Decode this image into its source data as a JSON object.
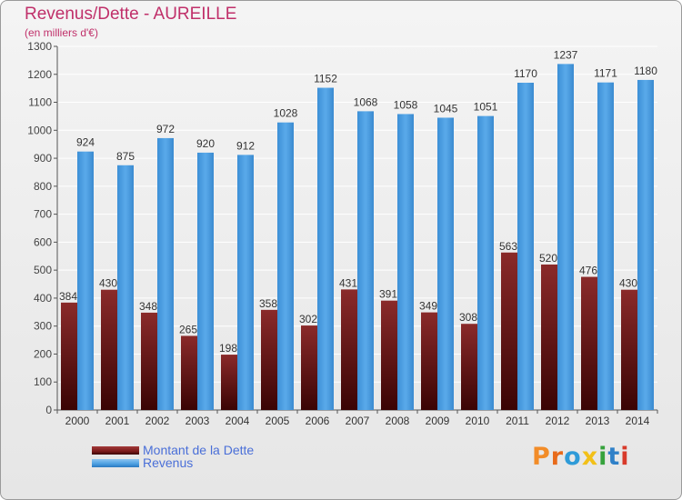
{
  "title": "Revenus/Dette - AUREILLE",
  "subtitle": "(en milliers d'€)",
  "brand": {
    "text": "Proxiti",
    "letters": [
      {
        "ch": "P",
        "color": "#f28c28"
      },
      {
        "ch": "r",
        "color": "#e86a1a"
      },
      {
        "ch": "o",
        "color": "#2f9bd8"
      },
      {
        "ch": "x",
        "color": "#f2c018"
      },
      {
        "ch": "i",
        "color": "#36a23c"
      },
      {
        "ch": "t",
        "color": "#2f80c8"
      },
      {
        "ch": "i",
        "color": "#d83a2a"
      }
    ]
  },
  "colors": {
    "title": "#c0306a",
    "dette": "#7a1a1a",
    "revenus": "#4a9ee0",
    "axis": "#333333",
    "grid": "#ffffff"
  },
  "chart_data": {
    "type": "bar",
    "title": "Revenus/Dette - AUREILLE",
    "subtitle": "(en milliers d'€)",
    "xlabel": "",
    "ylabel": "",
    "categories": [
      "2000",
      "2001",
      "2002",
      "2003",
      "2004",
      "2005",
      "2006",
      "2007",
      "2008",
      "2009",
      "2010",
      "2011",
      "2012",
      "2013",
      "2014"
    ],
    "series": [
      {
        "name": "Montant de la Dette",
        "color": "#7a1a1a",
        "values": [
          384,
          430,
          348,
          265,
          198,
          358,
          302,
          431,
          391,
          349,
          308,
          563,
          520,
          476,
          430
        ],
        "labels": [
          "384",
          "430",
          "348",
          "265",
          "198",
          "358",
          "302",
          "431",
          "391",
          "349",
          "308",
          "563",
          "520",
          "476",
          "430"
        ]
      },
      {
        "name": "Revenus",
        "color": "#4a9ee0",
        "values": [
          924,
          875,
          972,
          920,
          912,
          1028,
          1152,
          1068,
          1058,
          1045,
          1051,
          1170,
          1237,
          1171,
          1180
        ],
        "labels": [
          "924",
          "875",
          "972",
          "920",
          "912",
          "1028",
          "1152",
          "1068",
          "1058",
          "1045",
          "1051",
          "1170",
          "1237",
          "1171",
          "1180"
        ]
      }
    ],
    "ylim": [
      0,
      1300
    ],
    "yticks": [
      0,
      100,
      200,
      300,
      400,
      500,
      600,
      700,
      800,
      900,
      1000,
      1100,
      1200,
      1300
    ],
    "grid": true,
    "legend": "bottom-left"
  }
}
